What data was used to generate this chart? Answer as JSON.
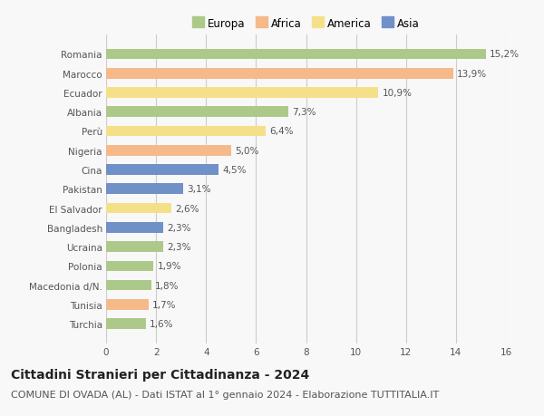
{
  "countries": [
    "Romania",
    "Marocco",
    "Ecuador",
    "Albania",
    "Perù",
    "Nigeria",
    "Cina",
    "Pakistan",
    "El Salvador",
    "Bangladesh",
    "Ucraina",
    "Polonia",
    "Macedonia d/N.",
    "Tunisia",
    "Turchia"
  ],
  "values": [
    15.2,
    13.9,
    10.9,
    7.3,
    6.4,
    5.0,
    4.5,
    3.1,
    2.6,
    2.3,
    2.3,
    1.9,
    1.8,
    1.7,
    1.6
  ],
  "labels": [
    "15,2%",
    "13,9%",
    "10,9%",
    "7,3%",
    "6,4%",
    "5,0%",
    "4,5%",
    "3,1%",
    "2,6%",
    "2,3%",
    "2,3%",
    "1,9%",
    "1,8%",
    "1,7%",
    "1,6%"
  ],
  "continents": [
    "Europa",
    "Africa",
    "America",
    "Europa",
    "America",
    "Africa",
    "Asia",
    "Asia",
    "America",
    "Asia",
    "Europa",
    "Europa",
    "Europa",
    "Africa",
    "Europa"
  ],
  "colors": {
    "Europa": "#adc98a",
    "Africa": "#f5b98a",
    "America": "#f5e08a",
    "Asia": "#7090c8"
  },
  "title": "Cittadini Stranieri per Cittadinanza - 2024",
  "subtitle": "COMUNE DI OVADA (AL) - Dati ISTAT al 1° gennaio 2024 - Elaborazione TUTTITALIA.IT",
  "xlim": [
    0,
    16
  ],
  "xticks": [
    0,
    2,
    4,
    6,
    8,
    10,
    12,
    14,
    16
  ],
  "background_color": "#f8f8f8",
  "plot_bg_color": "#f8f8f8",
  "grid_color": "#cccccc",
  "bar_height": 0.55,
  "title_fontsize": 10,
  "subtitle_fontsize": 8,
  "label_fontsize": 7.5,
  "tick_fontsize": 7.5,
  "legend_fontsize": 8.5
}
